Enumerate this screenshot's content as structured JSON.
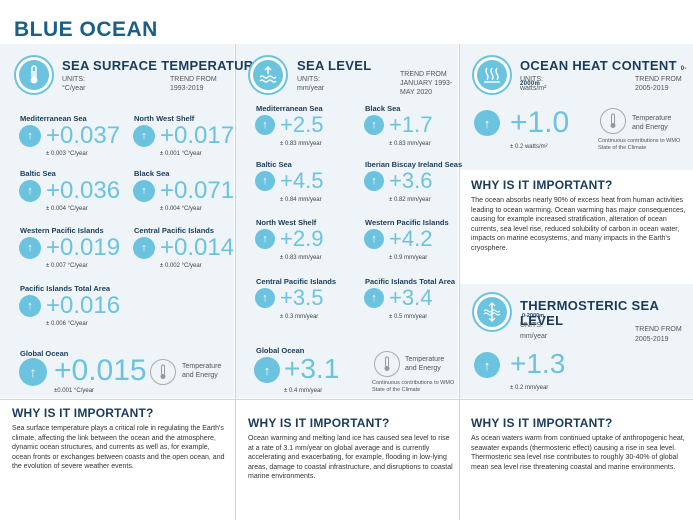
{
  "title": "BLUE OCEAN",
  "sst": {
    "title": "SEA SURFACE TEMPERATURE",
    "units_label": "UNITS:",
    "units": "°C/year",
    "trend_label": "TREND FROM",
    "trend_period": "1993-2019",
    "items": [
      {
        "name": "Mediterranean Sea",
        "value": "+0.037",
        "unc": "± 0.003 °C/year"
      },
      {
        "name": "North West Shelf",
        "value": "+0.017",
        "unc": "± 0.001 °C/year"
      },
      {
        "name": "Baltic Sea",
        "value": "+0.036",
        "unc": "± 0.004 °C/year"
      },
      {
        "name": "Black Sea",
        "value": "+0.071",
        "unc": "± 0.004 °C/year"
      },
      {
        "name": "Western Pacific Islands",
        "value": "+0.019",
        "unc": "± 0.007 °C/year"
      },
      {
        "name": "Central Pacific Islands",
        "value": "+0.014",
        "unc": "± 0.002 °C/year"
      },
      {
        "name": "Pacific Islands Total Area",
        "value": "+0.016",
        "unc": "± 0.006 °C/year"
      }
    ],
    "global": {
      "name": "Global Ocean",
      "value": "+0.015",
      "unc": "±0.001 °C/year"
    },
    "te_label": "Temperature and Energy"
  },
  "sl": {
    "title": "SEA LEVEL",
    "units_label": "UNITS:",
    "units": "mm/year",
    "trend_label": "TREND FROM",
    "trend_period": "JANUARY 1993-MAY 2020",
    "items": [
      {
        "name": "Mediterranean Sea",
        "value": "+2.5",
        "unc": "± 0.83 mm/year"
      },
      {
        "name": "Black Sea",
        "value": "+1.7",
        "unc": "± 0.83 mm/year"
      },
      {
        "name": "Baltic Sea",
        "value": "+4.5",
        "unc": "± 0.84 mm/year"
      },
      {
        "name": "Iberian Biscay Ireland Seas",
        "value": "+3.6",
        "unc": "± 0.82 mm/year"
      },
      {
        "name": "North West Shelf",
        "value": "+2.9",
        "unc": "± 0.83 mm/year"
      },
      {
        "name": "Western Pacific Islands",
        "value": "+4.2",
        "unc": "± 0.9 mm/year"
      },
      {
        "name": "Central Pacific Islands",
        "value": "+3.5",
        "unc": "± 0.3 mm/year"
      },
      {
        "name": "Pacific Islands Total Area",
        "value": "+3.4",
        "unc": "± 0.5 mm/year"
      }
    ],
    "global": {
      "name": "Global Ocean",
      "value": "+3.1",
      "unc": "± 0.4 mm/year"
    },
    "te_label": "Temperature and Energy",
    "wmo_note": "Continuous contributions to WMO State of the Climate"
  },
  "ohc": {
    "title": "OCEAN HEAT CONTENT",
    "depth": "0-2000m",
    "units_label": "UNITS:",
    "units": "watts/m²",
    "trend_label": "TREND FROM",
    "trend_period": "2005-2019",
    "value": "+1.0",
    "unc": "± 0.2 watts/m²",
    "te_label": "Temperature and Energy",
    "wmo_note": "Continuous contributions to WMO State of the Climate"
  },
  "tsl": {
    "title": "THERMOSTERIC SEA LEVEL",
    "depth": "0-2000m",
    "units_label": "UNITS:",
    "units": "mm/year",
    "trend_label": "TREND FROM",
    "trend_period": "2005-2019",
    "value": "+1.3",
    "unc": "± 0.2 mm/year"
  },
  "why": {
    "title": "WHY IS IT IMPORTANT?",
    "ohc_text": "The ocean absorbs nearly 90% of excess heat from human activities leading to ocean warming. Ocean warming has major consequences, causing for example increased stratification, alteration of ocean currents, sea level rise, reduced solubility of carbon in ocean water, impacts on marine ecosystems, and many impacts in the Earth's cryosphere.",
    "sst_text": "Sea surface temperature plays a critical role in regulating the Earth's climate, affecting the link between the ocean and the atmosphere, dynamic ocean structures, and currents as well as, for example, ocean fronts or exchanges between coasts and the open ocean, and the evolution of severe weather events.",
    "sl_text": "Ocean warming and melting land ice has caused sea level to rise at a rate of 3.1 mm/year on global average and is currently accelerating and exacerbating, for example, flooding in low-lying areas, damage to coastal infrastructure, and disruptions to coastal marine environments.",
    "tsl_text": "As ocean waters warm from continued uptake of anthropogenic heat, seawater expands (thermosteric effect) causing a rise in sea level. Thermosteric sea level rise contributes to roughly 30-40% of global mean sea level rise threatening coastal and marine environments."
  },
  "colors": {
    "accent": "#6bc3df",
    "heading": "#1a3c5a",
    "title": "#1a5f8a",
    "panel": "#eef4f8"
  }
}
